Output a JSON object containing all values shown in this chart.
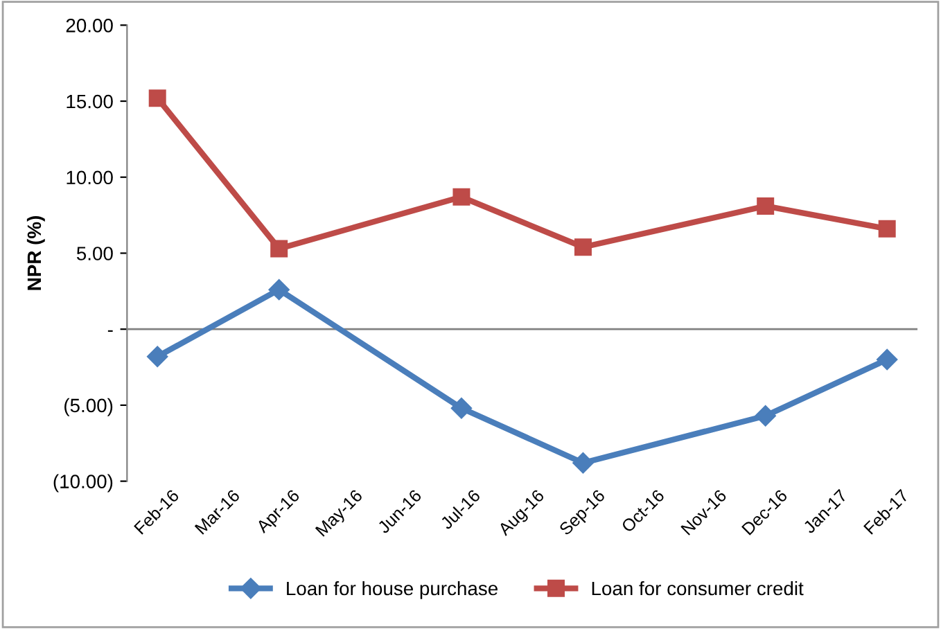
{
  "chart_data": {
    "type": "line",
    "ylabel": "NPR (%)",
    "categories": [
      "Feb-16",
      "Mar-16",
      "Apr-16",
      "May-16",
      "Jun-16",
      "Jul-16",
      "Aug-16",
      "Sep-16",
      "Oct-16",
      "Nov-16",
      "Dec-16",
      "Jan-17",
      "Feb-17"
    ],
    "series": [
      {
        "name": "Loan for house purchase",
        "color": "#4a7ebb",
        "marker": "diamond",
        "values": [
          -1.8,
          null,
          2.6,
          null,
          null,
          -5.2,
          null,
          -8.8,
          null,
          null,
          -5.7,
          null,
          -2.0
        ]
      },
      {
        "name": "Loan for consumer credit",
        "color": "#be4b48",
        "marker": "square",
        "values": [
          15.2,
          null,
          5.3,
          null,
          null,
          8.7,
          null,
          5.4,
          null,
          null,
          8.1,
          null,
          6.6
        ]
      }
    ],
    "ylim": [
      -10,
      20
    ],
    "yticks": [
      {
        "value": -10,
        "label": "(10.00)"
      },
      {
        "value": -5,
        "label": "(5.00)"
      },
      {
        "value": 0,
        "label": "-"
      },
      {
        "value": 5,
        "label": "5.00"
      },
      {
        "value": 10,
        "label": "10.00"
      },
      {
        "value": 15,
        "label": "15.00"
      },
      {
        "value": 20,
        "label": "20.00"
      }
    ],
    "ref_lines": [
      {
        "axis": "y",
        "value": 0,
        "color": "#808080"
      }
    ],
    "grid": false,
    "legend": "bottom",
    "line_style": "solid"
  }
}
